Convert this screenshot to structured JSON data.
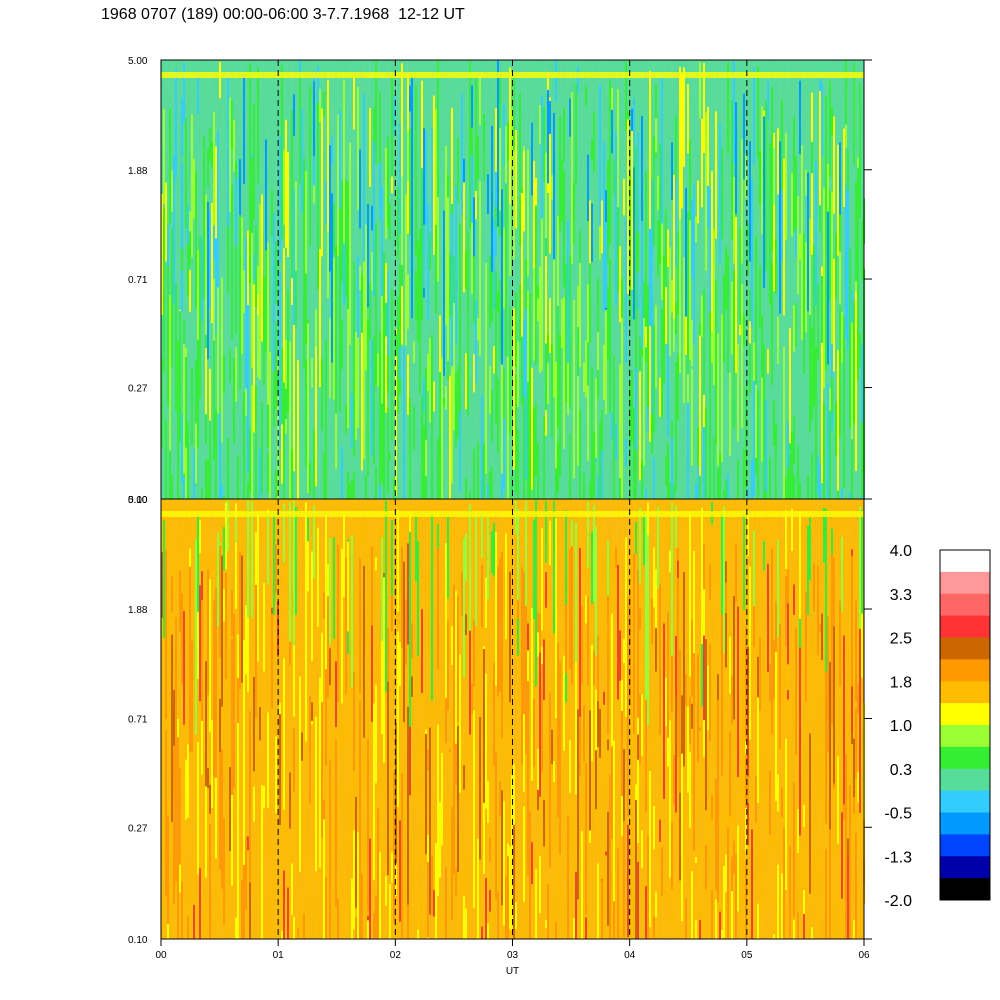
{
  "title": "1968 0707 (189) 00:00-06:00 3-7.7.1968  12-12 UT",
  "chart_data": [
    {
      "type": "heatmap",
      "panel": "top",
      "y_ticks": [
        "5.00",
        "1.88",
        "0.71",
        "0.27",
        "0.10"
      ],
      "y_scale": "log",
      "ylim": [
        0.1,
        5.0
      ],
      "xlim": [
        0,
        6
      ],
      "vertical_guides": [
        1,
        2,
        3,
        4,
        5
      ],
      "dominant_colors": [
        "#33ee33",
        "#99ff33",
        "#55dd99",
        "#33ccff",
        "#0099ff",
        "#ffff00"
      ]
    },
    {
      "type": "heatmap",
      "panel": "bottom",
      "y_ticks": [
        "5.00",
        "1.88",
        "0.71",
        "0.27",
        "0.10"
      ],
      "y_scale": "log",
      "ylim": [
        0.1,
        5.0
      ],
      "xlim": [
        0,
        6
      ],
      "vertical_guides": [
        1,
        2,
        3,
        4,
        5
      ],
      "xlabel": "UT",
      "x_ticks": [
        "00",
        "01",
        "02",
        "03",
        "04",
        "05",
        "06"
      ],
      "dominant_colors": [
        "#ffbb00",
        "#ff9900",
        "#ffff00",
        "#cc6600",
        "#ee4422",
        "#99ff33"
      ]
    }
  ],
  "colorbar": {
    "labels": [
      "4.0",
      "3.3",
      "2.5",
      "1.8",
      "1.0",
      "0.3",
      "-0.5",
      "-1.3",
      "-2.0"
    ],
    "colors_top_to_bottom": [
      "#ffffff",
      "#ff9999",
      "#ff6666",
      "#ff3333",
      "#cc6600",
      "#ff9900",
      "#ffbb00",
      "#ffff00",
      "#99ff33",
      "#33ee33",
      "#55dd99",
      "#33ccff",
      "#0099ff",
      "#0044ff",
      "#0000aa",
      "#000000"
    ]
  }
}
